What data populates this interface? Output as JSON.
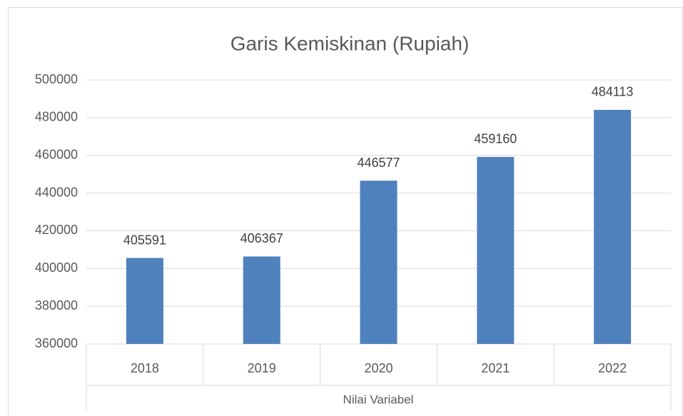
{
  "chart_data": {
    "type": "bar",
    "title": "Garis Kemiskinan (Rupiah)",
    "categories": [
      "2018",
      "2019",
      "2020",
      "2021",
      "2022"
    ],
    "values": [
      405591,
      406367,
      446577,
      459160,
      484113
    ],
    "color": "#4f81bd",
    "xlabel": "Nilai Variabel",
    "ylim": [
      360000,
      500000
    ],
    "yticks": [
      360000,
      380000,
      400000,
      420000,
      440000,
      460000,
      480000,
      500000
    ],
    "grid": true
  }
}
